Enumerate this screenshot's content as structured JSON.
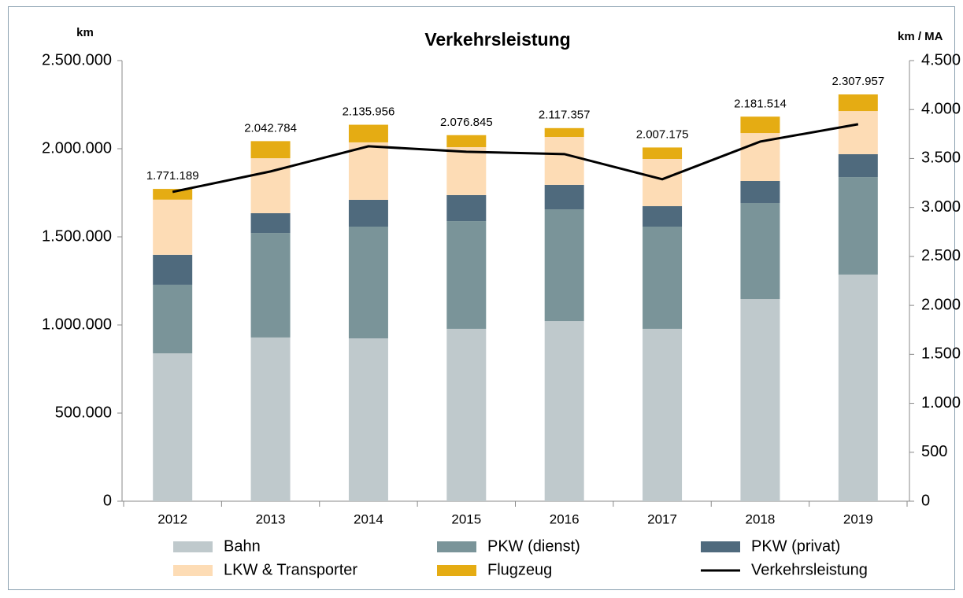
{
  "chart_data": {
    "type": "bar",
    "title": "Verkehrsleistung",
    "y_label": "km",
    "y2_label": "km / MA",
    "categories": [
      "2012",
      "2013",
      "2014",
      "2015",
      "2016",
      "2017",
      "2018",
      "2019"
    ],
    "series": [
      {
        "name": "Bahn",
        "color": "#bfc9cc",
        "values": [
          839000,
          929000,
          924000,
          978000,
          1022000,
          978000,
          1147000,
          1286000
        ]
      },
      {
        "name": "PKW (dienst)",
        "color": "#7a9499",
        "values": [
          389000,
          593000,
          634000,
          611000,
          634000,
          580000,
          545000,
          553000
        ]
      },
      {
        "name": "PKW (privat)",
        "color": "#4f6a7d",
        "values": [
          170000,
          112000,
          152000,
          148000,
          139000,
          116000,
          125000,
          130000
        ]
      },
      {
        "name": "LKW & Transporter",
        "color": "#fddcb5",
        "values": [
          313000,
          312000,
          326000,
          272000,
          272000,
          268000,
          272000,
          245000
        ]
      },
      {
        "name": "Flugzeug",
        "color": "#e5ac13",
        "values": [
          61000,
          97000,
          100000,
          68000,
          50000,
          65000,
          93000,
          94000
        ]
      },
      {
        "name": "Verkehrsleistung",
        "color": "#000000",
        "type": "line",
        "axis": "y2",
        "values": [
          3159,
          3368,
          3625,
          3569,
          3545,
          3288,
          3673,
          3850
        ]
      }
    ],
    "totals": [
      1771189,
      2042784,
      2135956,
      2076845,
      2117357,
      2007175,
      2181514,
      2307957
    ],
    "total_labels": [
      "1.771.189",
      "2.042.784",
      "2.135.956",
      "2.076.845",
      "2.117.357",
      "2.007.175",
      "2.181.514",
      "2.307.957"
    ],
    "ylim": [
      0,
      2500000
    ],
    "yticks": [
      0,
      {
        "value": 500000,
        "label": "500.000"
      },
      {
        "value": 1000000,
        "label": "1.000.000"
      },
      {
        "value": 1500000,
        "label": "1.500.000"
      },
      {
        "value": 2000000,
        "label": "2.000.000"
      },
      {
        "value": 2500000,
        "label": "2.500.000"
      }
    ],
    "y2lim": [
      0,
      4500
    ],
    "y2ticks": [
      0,
      500,
      {
        "value": 1000,
        "label": "1.000"
      },
      {
        "value": 1500,
        "label": "1.500"
      },
      {
        "value": 2000,
        "label": "2.000"
      },
      {
        "value": 2500,
        "label": "2.500"
      },
      {
        "value": 3000,
        "label": "3.000"
      },
      {
        "value": 3500,
        "label": "3.500"
      },
      {
        "value": 4000,
        "label": "4.000"
      },
      {
        "value": 4500,
        "label": "4.500"
      }
    ],
    "grid": false,
    "legend": "bottom"
  }
}
